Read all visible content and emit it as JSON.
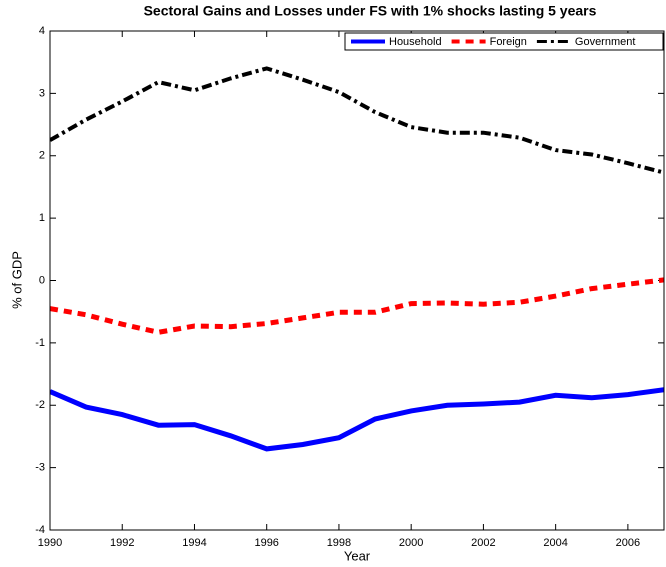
{
  "chart_data": {
    "type": "line",
    "title": "Sectoral Gains and Losses under FS with 1% shocks lasting 5 years",
    "x_label": "Year",
    "y_label": "% of GDP",
    "x": [
      1990,
      1991,
      1992,
      1993,
      1994,
      1995,
      1996,
      1997,
      1998,
      1999,
      2000,
      2001,
      2002,
      2003,
      2004,
      2005,
      2006,
      2007
    ],
    "series": [
      {
        "name": "Household",
        "color": "#0000ff",
        "style": "solid",
        "values": [
          -1.78,
          -2.03,
          -2.15,
          -2.32,
          -2.31,
          -2.49,
          -2.7,
          -2.63,
          -2.52,
          -2.22,
          -2.09,
          -2.0,
          -1.98,
          -1.95,
          -1.84,
          -1.88,
          -1.83,
          -1.75
        ]
      },
      {
        "name": "Foreign",
        "color": "#ff0000",
        "style": "dashed",
        "values": [
          -0.45,
          -0.55,
          -0.7,
          -0.83,
          -0.73,
          -0.74,
          -0.69,
          -0.6,
          -0.51,
          -0.51,
          -0.37,
          -0.36,
          -0.38,
          -0.35,
          -0.25,
          -0.13,
          -0.06,
          0.01
        ]
      },
      {
        "name": "Government",
        "color": "#000000",
        "style": "dashdot",
        "values": [
          2.25,
          2.58,
          2.87,
          3.18,
          3.05,
          3.24,
          3.4,
          3.22,
          3.02,
          2.7,
          2.46,
          2.37,
          2.37,
          2.29,
          2.09,
          2.02,
          1.88,
          1.73
        ]
      }
    ],
    "xlim": [
      1990,
      2007
    ],
    "xticks": [
      1990,
      1992,
      1994,
      1996,
      1998,
      2000,
      2002,
      2004,
      2006
    ],
    "ylim": [
      -4,
      4
    ],
    "yticks": [
      -4,
      -3,
      -2,
      -1,
      0,
      1,
      2,
      3,
      4
    ],
    "legend": "top-right"
  }
}
